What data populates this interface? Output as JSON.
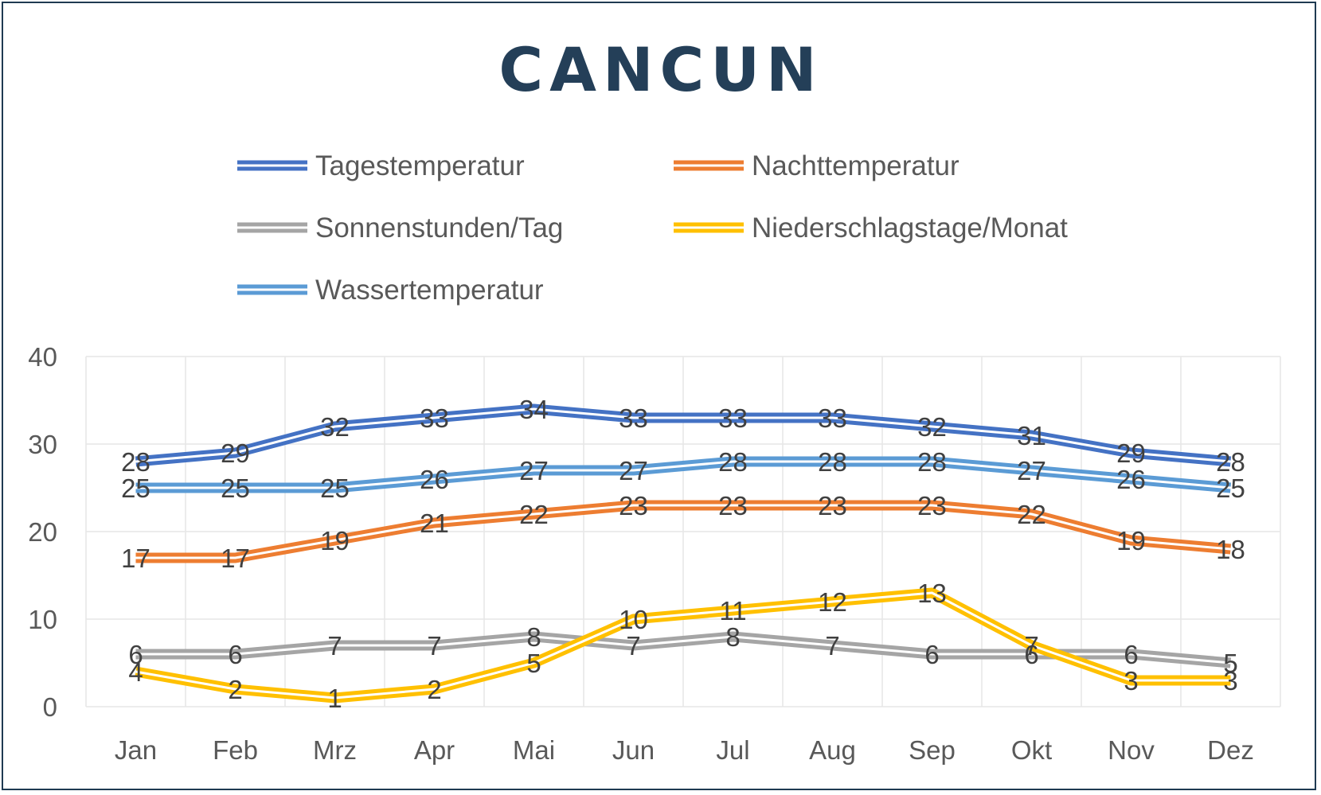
{
  "chart_data": {
    "type": "line",
    "title": "CANCUN",
    "categories": [
      "Jan",
      "Feb",
      "Mrz",
      "Apr",
      "Mai",
      "Jun",
      "Jul",
      "Aug",
      "Sep",
      "Okt",
      "Nov",
      "Dez"
    ],
    "ylim": [
      0,
      40
    ],
    "yticks": [
      0,
      10,
      20,
      30,
      40
    ],
    "grid": true,
    "legend_position": "top",
    "series": [
      {
        "name": "Tagestemperatur",
        "color": "#4472c4",
        "values": [
          28,
          29,
          32,
          33,
          34,
          33,
          33,
          33,
          32,
          31,
          29,
          28
        ]
      },
      {
        "name": "Nachttemperatur",
        "color": "#ed7d31",
        "values": [
          17,
          17,
          19,
          21,
          22,
          23,
          23,
          23,
          23,
          22,
          19,
          18
        ]
      },
      {
        "name": "Sonnenstunden/Tag",
        "color": "#a5a5a5",
        "values": [
          6,
          6,
          7,
          7,
          8,
          7,
          8,
          7,
          6,
          6,
          6,
          5
        ]
      },
      {
        "name": "Niederschlagstage/Monat",
        "color": "#ffc000",
        "values": [
          4,
          2,
          1,
          2,
          5,
          10,
          11,
          12,
          13,
          7,
          3,
          3
        ]
      },
      {
        "name": "Wassertemperatur",
        "color": "#5b9bd5",
        "values": [
          25,
          25,
          25,
          26,
          27,
          27,
          28,
          28,
          28,
          27,
          26,
          25
        ]
      }
    ]
  }
}
